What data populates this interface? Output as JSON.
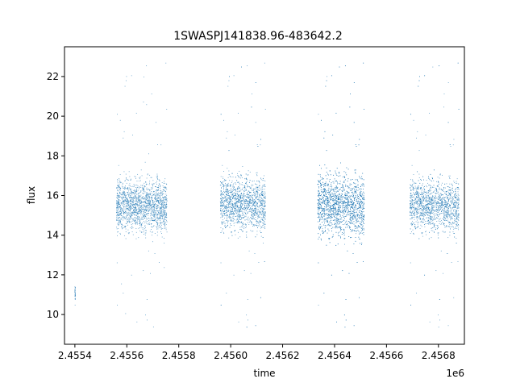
{
  "chart_data": {
    "type": "scatter",
    "title": "1SWASPJ141838.96-483642.2",
    "xlabel": "time",
    "ylabel": "flux",
    "x_offset_label": "1e6",
    "xlim": [
      2455360,
      2456900
    ],
    "ylim": [
      8.5,
      23.5
    ],
    "xticks": [
      2455400,
      2455600,
      2455800,
      2456000,
      2456200,
      2456400,
      2456600,
      2456800
    ],
    "xtick_labels": [
      "2.4554",
      "2.4556",
      "2.4558",
      "2.4560",
      "2.4562",
      "2.4564",
      "2.4566",
      "2.4568"
    ],
    "yticks": [
      10,
      12,
      14,
      16,
      18,
      20,
      22
    ],
    "ytick_labels": [
      "10",
      "12",
      "14",
      "16",
      "18",
      "20",
      "22"
    ],
    "grid": false,
    "point_color": "#1f77b4",
    "seasons": [
      {
        "x_start": 2455400,
        "x_end": 2455402,
        "y_low": 10.0,
        "y_high": 12.0,
        "n": 30
      },
      {
        "x_start": 2455560,
        "x_end": 2455755,
        "y_low": 13.0,
        "y_high": 18.0,
        "n": 1800
      },
      {
        "x_start": 2455960,
        "x_end": 2456135,
        "y_low": 13.0,
        "y_high": 18.2,
        "n": 1800
      },
      {
        "x_start": 2456335,
        "x_end": 2456515,
        "y_low": 12.5,
        "y_high": 18.5,
        "n": 2600
      },
      {
        "x_start": 2456690,
        "x_end": 2456880,
        "y_low": 13.0,
        "y_high": 18.0,
        "n": 1800
      }
    ],
    "outlier_range": [
      9.2,
      22.9
    ]
  }
}
